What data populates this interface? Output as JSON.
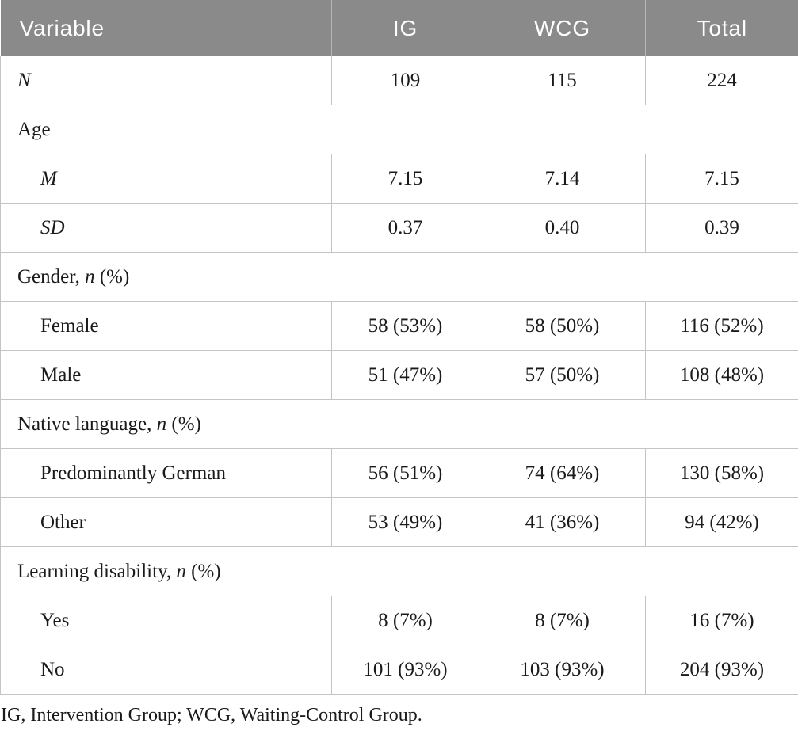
{
  "table": {
    "columns": [
      "Variable",
      "IG",
      "WCG",
      "Total"
    ],
    "rows": [
      {
        "type": "data",
        "indent": false,
        "label": [
          {
            "t": "N",
            "i": true
          }
        ],
        "values": [
          "109",
          "115",
          "224"
        ]
      },
      {
        "type": "section",
        "label": [
          {
            "t": "Age"
          }
        ]
      },
      {
        "type": "data",
        "indent": true,
        "label": [
          {
            "t": "M",
            "i": true
          }
        ],
        "values": [
          "7.15",
          "7.14",
          "7.15"
        ]
      },
      {
        "type": "data",
        "indent": true,
        "label": [
          {
            "t": "SD",
            "i": true
          }
        ],
        "values": [
          "0.37",
          "0.40",
          "0.39"
        ]
      },
      {
        "type": "section",
        "label": [
          {
            "t": "Gender, "
          },
          {
            "t": "n",
            "i": true
          },
          {
            "t": " (%)"
          }
        ]
      },
      {
        "type": "data",
        "indent": true,
        "label": [
          {
            "t": "Female"
          }
        ],
        "values": [
          "58 (53%)",
          "58 (50%)",
          "116 (52%)"
        ]
      },
      {
        "type": "data",
        "indent": true,
        "label": [
          {
            "t": "Male"
          }
        ],
        "values": [
          "51 (47%)",
          "57 (50%)",
          "108 (48%)"
        ]
      },
      {
        "type": "section",
        "label": [
          {
            "t": "Native language, "
          },
          {
            "t": "n",
            "i": true
          },
          {
            "t": " (%)"
          }
        ]
      },
      {
        "type": "data",
        "indent": true,
        "label": [
          {
            "t": "Predominantly German"
          }
        ],
        "values": [
          "56 (51%)",
          "74 (64%)",
          "130 (58%)"
        ]
      },
      {
        "type": "data",
        "indent": true,
        "label": [
          {
            "t": "Other"
          }
        ],
        "values": [
          "53 (49%)",
          "41 (36%)",
          "94 (42%)"
        ]
      },
      {
        "type": "section",
        "label": [
          {
            "t": "Learning disability, "
          },
          {
            "t": "n",
            "i": true
          },
          {
            "t": " (%)"
          }
        ]
      },
      {
        "type": "data",
        "indent": true,
        "label": [
          {
            "t": "Yes"
          }
        ],
        "values": [
          "8 (7%)",
          "8 (7%)",
          "16 (7%)"
        ]
      },
      {
        "type": "data",
        "indent": true,
        "label": [
          {
            "t": "No"
          }
        ],
        "values": [
          "101 (93%)",
          "103 (93%)",
          "204 (93%)"
        ]
      }
    ],
    "footnote": "IG, Intervention Group; WCG, Waiting-Control Group."
  },
  "colors": {
    "header_background": "#8a8a8a",
    "header_text": "#ffffff",
    "header_divider": "#b5b5b5",
    "body_border": "#c4c4c4",
    "body_text": "#1a1a1a"
  }
}
